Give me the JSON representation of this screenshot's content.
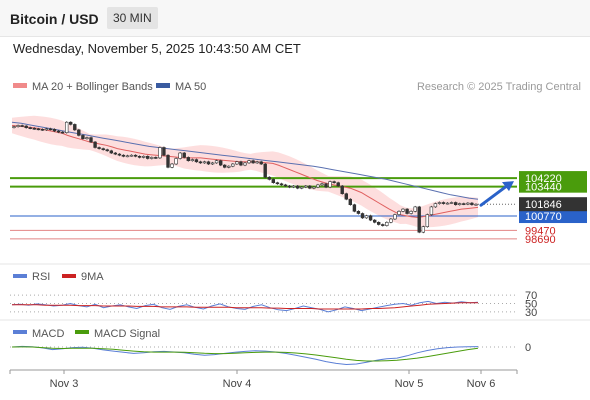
{
  "header": {
    "title": "Bitcoin / USD",
    "timeframe": "30 MIN",
    "datetime": "Wednesday, November 5, 2025 10:43:50 AM CET"
  },
  "legend": {
    "ma20": "MA 20 + Bollinger Bands",
    "ma50": "MA 50",
    "source": "Research © 2025 Trading Central",
    "rsi": "RSI",
    "rsi_ma": "9MA",
    "macd": "MACD",
    "macd_signal": "MACD Signal"
  },
  "colors": {
    "candle": "#333333",
    "ma20": "#e06060",
    "band": "#fcd3d3",
    "ma50": "#5a70b0",
    "green_level": "#4a9c0c",
    "blue_level": "#2a62c9",
    "red_level": "#cc2222",
    "price_box": "#333333",
    "rsi": "#5b7fd6",
    "rsi_ma": "#cc2222",
    "macd": "#5b7fd6",
    "macd_signal": "#4a9c0c",
    "arrow": "#2a62c9"
  },
  "chart_data": {
    "type": "candlestick",
    "x_labels": [
      "Nov 3",
      "Nov 4",
      "Nov 5",
      "Nov 6"
    ],
    "y_range": [
      97500,
      111500
    ],
    "current_price": 101846,
    "levels": [
      {
        "label": "104220",
        "value": 104220,
        "kind": "resistance",
        "color": "green"
      },
      {
        "label": "103440",
        "value": 103440,
        "kind": "resistance",
        "color": "green"
      },
      {
        "label": "100770",
        "value": 100770,
        "kind": "pivot",
        "color": "blue"
      },
      {
        "label": "99470",
        "value": 99470,
        "kind": "support",
        "color": "red"
      },
      {
        "label": "98690",
        "value": 98690,
        "kind": "support",
        "color": "red"
      }
    ],
    "close": [
      108900,
      109000,
      108950,
      108800,
      108750,
      108700,
      108650,
      108600,
      108700,
      108650,
      108500,
      108400,
      108350,
      109300,
      109100,
      108600,
      108100,
      107800,
      107900,
      107500,
      107000,
      106900,
      106800,
      106700,
      106500,
      106400,
      106300,
      106200,
      106250,
      106300,
      106200,
      106100,
      106200,
      106000,
      106100,
      106050,
      107000,
      106300,
      105200,
      105500,
      106000,
      106500,
      106100,
      105800,
      105900,
      105700,
      105600,
      105700,
      105500,
      105600,
      105800,
      105400,
      105200,
      105300,
      105500,
      105700,
      105400,
      105600,
      105800,
      105600,
      105700,
      105500,
      104300,
      104100,
      103800,
      103700,
      103600,
      103500,
      103400,
      103500,
      103300,
      103400,
      103500,
      103300,
      103400,
      103600,
      103700,
      103400,
      103900,
      103800,
      103500,
      102800,
      102300,
      101800,
      101200,
      101000,
      100600,
      100800,
      100400,
      100200,
      100000,
      99900,
      100200,
      100500,
      100900,
      101200,
      101400,
      101000,
      101200,
      101600,
      99300,
      99800,
      100900,
      101600,
      101900,
      102000,
      101900,
      101950,
      102000,
      101800,
      101900,
      101850,
      101950,
      101800,
      101846
    ],
    "ma20": [
      109000,
      108950,
      108900,
      108850,
      108800,
      108700,
      108600,
      108500,
      108400,
      108300,
      108100,
      107950,
      107800,
      107650,
      107500,
      107400,
      107300,
      107200,
      107050,
      106900,
      106800,
      106700,
      106600,
      106500,
      106400,
      106350,
      106300,
      106250,
      106200,
      106150,
      106100,
      106050,
      106050,
      106050,
      106050,
      106000,
      105950,
      105900,
      105850,
      105800,
      105750,
      105700,
      105700,
      105700,
      105700,
      105650,
      105600,
      105550,
      105400,
      105200,
      105000,
      104800,
      104600,
      104400,
      104200,
      104000,
      103850,
      103700,
      103600,
      103500,
      103400,
      103300,
      103100,
      102900,
      102600,
      102300,
      102000,
      101700,
      101400,
      101150,
      100900,
      100800,
      100700,
      100650,
      100700,
      100800,
      100900,
      101000,
      101100,
      101200,
      101300,
      101400,
      101450,
      101500,
      101550
    ],
    "ma50": [
      109300,
      109200,
      109050,
      108900,
      108750,
      108600,
      108450,
      108300,
      108150,
      108000,
      107850,
      107700,
      107550,
      107400,
      107250,
      107100,
      107000,
      106900,
      106800,
      106700,
      106600,
      106500,
      106400,
      106300,
      106200,
      106100,
      106000,
      105900,
      105800,
      105700,
      105600,
      105500,
      105400,
      105300,
      105150,
      105000,
      104850,
      104700,
      104550,
      104400,
      104250,
      104100,
      103900,
      103700,
      103500,
      103300,
      103100,
      102900,
      102700,
      102550,
      102400,
      102300
    ],
    "rsi": {
      "ticks": [
        70,
        50,
        30
      ],
      "rsi": [
        47,
        48,
        46,
        49,
        47,
        44,
        46,
        50,
        45,
        42,
        48,
        40,
        44,
        47,
        42,
        38,
        45,
        48,
        40,
        36,
        43,
        47,
        41,
        37,
        44,
        49,
        42,
        38,
        36,
        43,
        47,
        40,
        35,
        33,
        38,
        44,
        40,
        36,
        30,
        35,
        42,
        38,
        33,
        37,
        41,
        45,
        48,
        50,
        46,
        52,
        55,
        50,
        53,
        51,
        54,
        52,
        53
      ],
      "rsi_ma": [
        47,
        47,
        47,
        47,
        46,
        46,
        46,
        46,
        45,
        45,
        45,
        44,
        44,
        44,
        44,
        43,
        43,
        43,
        42,
        42,
        42,
        42,
        41,
        41,
        41,
        41,
        41,
        40,
        40,
        40,
        40,
        39,
        39,
        38,
        38,
        38,
        38,
        37,
        37,
        37,
        37,
        37,
        37,
        38,
        38,
        39,
        40,
        42,
        44,
        46,
        48,
        49,
        50,
        51,
        52,
        52,
        52
      ]
    },
    "macd": {
      "ticks": [
        0
      ],
      "macd": [
        0,
        20,
        10,
        -30,
        -90,
        -60,
        -20,
        -10,
        -40,
        -100,
        -140,
        -180,
        -220,
        -200,
        -160,
        -150,
        -170,
        -200,
        -250,
        -280,
        -260,
        -220,
        -180,
        -150,
        -130,
        -140,
        -170,
        -220,
        -280,
        -350,
        -420,
        -500,
        -560,
        -600,
        -580,
        -520,
        -450,
        -400,
        -380,
        -300,
        -200,
        -120,
        -60,
        -20,
        0,
        10,
        15
      ],
      "signal": [
        0,
        5,
        0,
        -20,
        -40,
        -50,
        -45,
        -40,
        -45,
        -60,
        -80,
        -110,
        -140,
        -165,
        -175,
        -175,
        -175,
        -180,
        -195,
        -215,
        -225,
        -225,
        -215,
        -200,
        -185,
        -175,
        -175,
        -185,
        -205,
        -235,
        -275,
        -320,
        -370,
        -420,
        -460,
        -480,
        -480,
        -470,
        -450,
        -420,
        -380,
        -330,
        -270,
        -210,
        -150,
        -90,
        -40
      ]
    }
  }
}
